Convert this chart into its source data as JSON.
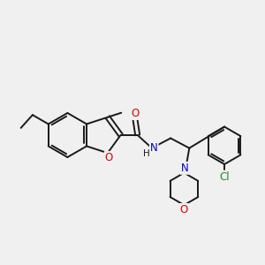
{
  "background_color": "#f0f0f0",
  "bond_color": "#1a1a1a",
  "atom_colors": {
    "O": "#dd0000",
    "N": "#0000cc",
    "Cl": "#228822",
    "C": "#1a1a1a",
    "H": "#1a1a1a"
  },
  "font_size": 8.5,
  "line_width": 1.4
}
